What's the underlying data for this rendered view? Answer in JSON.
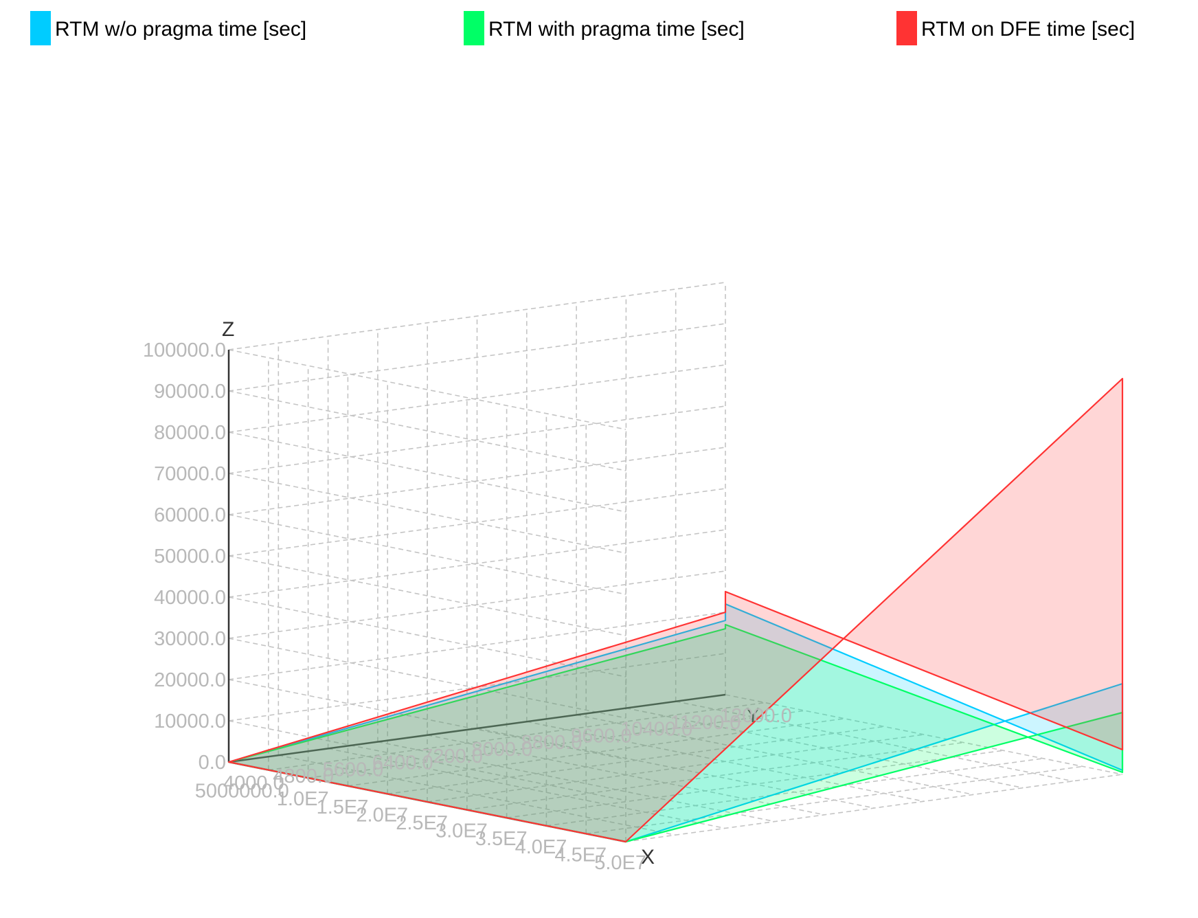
{
  "chart_data": {
    "type": "area",
    "projection": "3d",
    "legend_position": "top",
    "grid": true,
    "axes": {
      "x": {
        "label": "X",
        "ticks": [
          "5000000.0",
          "1.0E7",
          "1.5E7",
          "2.0E7",
          "2.5E7",
          "3.0E7",
          "3.5E7",
          "4.0E7",
          "4.5E7",
          "5.0E7"
        ]
      },
      "y": {
        "label": "Y",
        "ticks": [
          "4000.0",
          "4800.0",
          "5600.0",
          "6400.0",
          "7200.0",
          "8000.0",
          "8800.0",
          "9600.0",
          "10400.0",
          "11200.0",
          "12000.0"
        ]
      },
      "z": {
        "label": "Z",
        "ticks": [
          "0.0",
          "10000.0",
          "20000.0",
          "30000.0",
          "40000.0",
          "50000.0",
          "60000.0",
          "70000.0",
          "80000.0",
          "90000.0",
          "100000.0"
        ]
      }
    },
    "x_range": [
      0,
      50000000
    ],
    "y_range": [
      4000,
      12000
    ],
    "z_range": [
      0,
      100000
    ],
    "series": [
      {
        "name": "RTM w/o pragma time [sec]",
        "color": "#00ccff",
        "points": [
          {
            "x": 0,
            "y": 4000,
            "z": 0
          },
          {
            "x": 50000000,
            "y": 4000,
            "z": 0
          },
          {
            "x": 50000000,
            "y": 12000,
            "z": 22000
          },
          {
            "x": 50000000,
            "y": 12000,
            "z": 1000
          },
          {
            "x": 0,
            "y": 12000,
            "z": 22000
          },
          {
            "x": 0,
            "y": 12000,
            "z": 18000
          }
        ]
      },
      {
        "name": "RTM with pragma time [sec]",
        "color": "#00ff66",
        "points": [
          {
            "x": 0,
            "y": 4000,
            "z": 0
          },
          {
            "x": 50000000,
            "y": 4000,
            "z": 0
          },
          {
            "x": 50000000,
            "y": 12000,
            "z": 15000
          },
          {
            "x": 50000000,
            "y": 12000,
            "z": 500
          },
          {
            "x": 0,
            "y": 12000,
            "z": 17000
          },
          {
            "x": 0,
            "y": 12000,
            "z": 16000
          }
        ]
      },
      {
        "name": "RTM on DFE time [sec]",
        "color": "#ff3333",
        "points": [
          {
            "x": 0,
            "y": 4000,
            "z": 0
          },
          {
            "x": 50000000,
            "y": 4000,
            "z": 0
          },
          {
            "x": 50000000,
            "y": 12000,
            "z": 96000
          },
          {
            "x": 50000000,
            "y": 12000,
            "z": 6000
          },
          {
            "x": 0,
            "y": 12000,
            "z": 25000
          },
          {
            "x": 0,
            "y": 12000,
            "z": 20000
          }
        ]
      }
    ]
  }
}
